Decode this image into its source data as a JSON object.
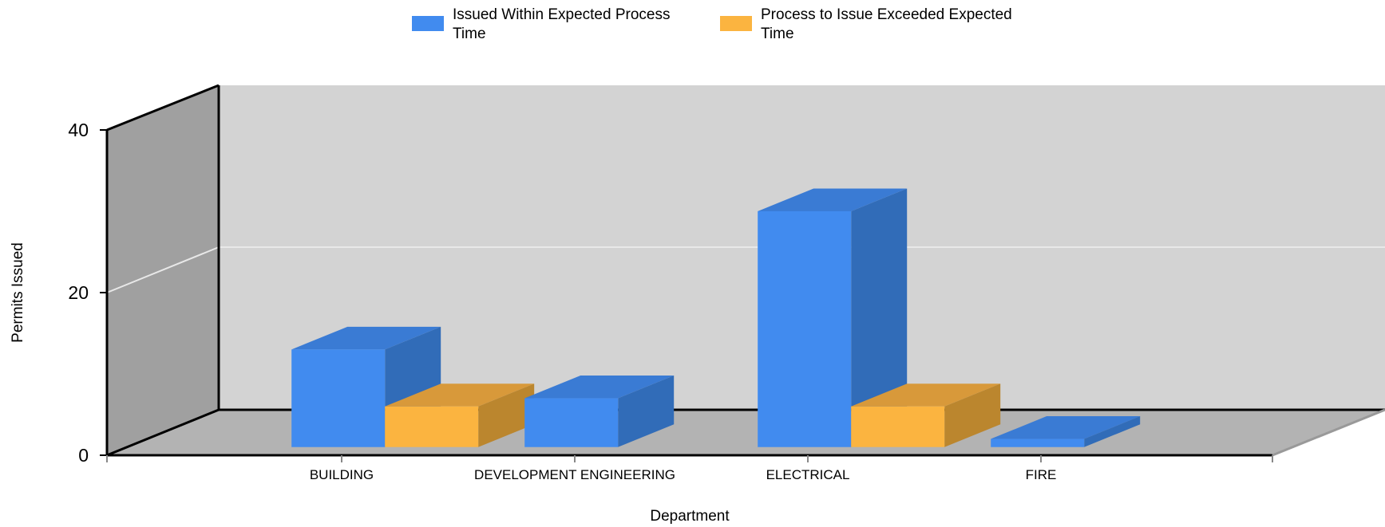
{
  "chart_data": {
    "type": "bar",
    "title": "",
    "xlabel": "Department",
    "ylabel": "Permits Issued",
    "categories": [
      "BUILDING",
      "DEVELOPMENT ENGINEERING",
      "ELECTRICAL",
      "FIRE"
    ],
    "series": [
      {
        "name": "Issued Within Expected Process Time",
        "values": [
          12,
          6,
          29,
          1
        ]
      },
      {
        "name": "Process to Issue Exceeded Expected Time",
        "values": [
          5,
          0,
          5,
          0
        ]
      }
    ],
    "ylim": [
      0,
      40
    ],
    "yticks": [
      0,
      20,
      40
    ],
    "legend_position": "top",
    "grid": true,
    "colors": {
      "series_front": [
        "#418bef",
        "#fbb440"
      ],
      "series_top": [
        "#3a7bd4",
        "#d8993a"
      ],
      "series_side": [
        "#316cb8",
        "#bb862e"
      ],
      "back_wall": "#d3d3d3",
      "side_wall": "#a0a0a0",
      "floor": "#b3b3b3",
      "gridline": "#e8e8e8"
    }
  }
}
